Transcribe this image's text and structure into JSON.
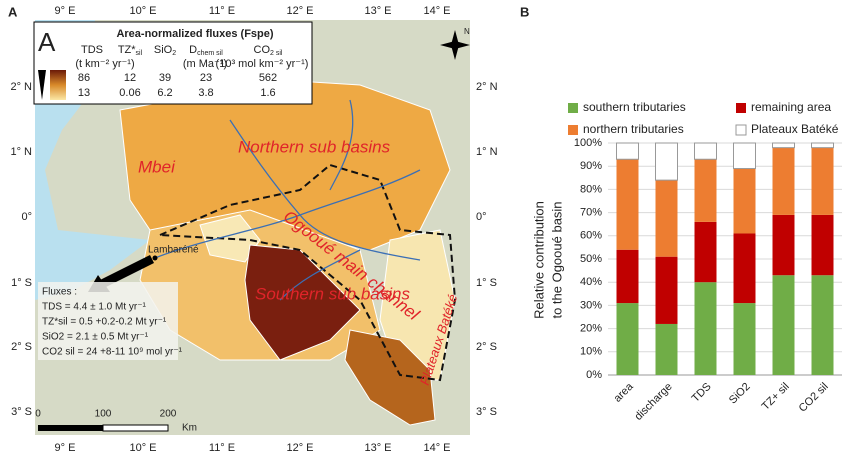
{
  "map": {
    "panel_label": "A",
    "lon_labels": [
      "9° E",
      "10° E",
      "11° E",
      "12° E",
      "13° E",
      "14° E"
    ],
    "lat_labels": [
      "2° N",
      "1° N",
      "0°",
      "1° S",
      "2° S",
      "3° S"
    ],
    "legend": {
      "letter": "A",
      "title": "Area-normalized fluxes (Fspe)",
      "headers": [
        {
          "text": "TDS"
        },
        {
          "text": "TZ*",
          "sub": "sil"
        },
        {
          "text": "SiO",
          "sub": "2"
        },
        {
          "text": "D",
          "sub": "chem sil"
        },
        {
          "text": "CO",
          "sub": "2 sil"
        }
      ],
      "units": [
        "(t km⁻² yr⁻¹)",
        "(m Ma⁻¹)",
        "(10³ mol km⁻² yr⁻¹)"
      ],
      "rows": [
        [
          "86",
          "12",
          "39",
          "23",
          "562"
        ],
        [
          "13",
          "0.06",
          "6.2",
          "3.8",
          "1.6"
        ]
      ]
    },
    "regions": [
      "Mbei",
      "Northern sub basins",
      "Ogooué main channel",
      "Southern sub basins",
      "Plateaux Batéké"
    ],
    "town": "Lambaréné",
    "fluxes": [
      "Fluxes :",
      "TDS = 4.4 ± 1.0 Mt yr⁻¹",
      "TZ*sil = 0.5 +0.2-0.2 Mt yr⁻¹",
      "SiO2 = 2.1 ± 0.5 Mt yr⁻¹",
      "CO2 sil = 24 +8-11 10⁹ mol yr⁻¹"
    ],
    "scale": [
      "0",
      "100",
      "200",
      "Km"
    ],
    "north": "N"
  },
  "chart_data": {
    "type": "stacked_bar",
    "panel_label": "B",
    "ylabel": [
      "Relative contribution",
      "to the Ogooué basin"
    ],
    "categories": [
      "area",
      "discharge",
      "TDS",
      "SiO2",
      "TZ+ sil",
      "CO2 sil"
    ],
    "series": [
      {
        "name": "southern tributaries",
        "color": "#70ad47",
        "values": [
          31,
          22,
          40,
          31,
          43,
          43
        ]
      },
      {
        "name": "remaining area",
        "color": "#c00000",
        "values": [
          23,
          29,
          26,
          30,
          26,
          26
        ]
      },
      {
        "name": "northern tributaries",
        "color": "#ed7d31",
        "values": [
          39,
          33,
          27,
          28,
          29,
          29
        ]
      },
      {
        "name": "Plateaux Batéké",
        "color": "#ffffff",
        "values": [
          7,
          16,
          7,
          11,
          2,
          2
        ]
      }
    ],
    "ylim": [
      0,
      100
    ],
    "yticks": [
      {
        "value": 0,
        "label": "0%"
      },
      {
        "value": 10,
        "label": "10%"
      },
      {
        "value": 20,
        "label": "20%"
      },
      {
        "value": 30,
        "label": "30%"
      },
      {
        "value": 40,
        "label": "40%"
      },
      {
        "value": 50,
        "label": "50%"
      },
      {
        "value": 60,
        "label": "60%"
      },
      {
        "value": 70,
        "label": "70%"
      },
      {
        "value": 80,
        "label": "80%"
      },
      {
        "value": 90,
        "label": "90%"
      },
      {
        "value": 100,
        "label": "100%"
      }
    ],
    "grid": true
  }
}
